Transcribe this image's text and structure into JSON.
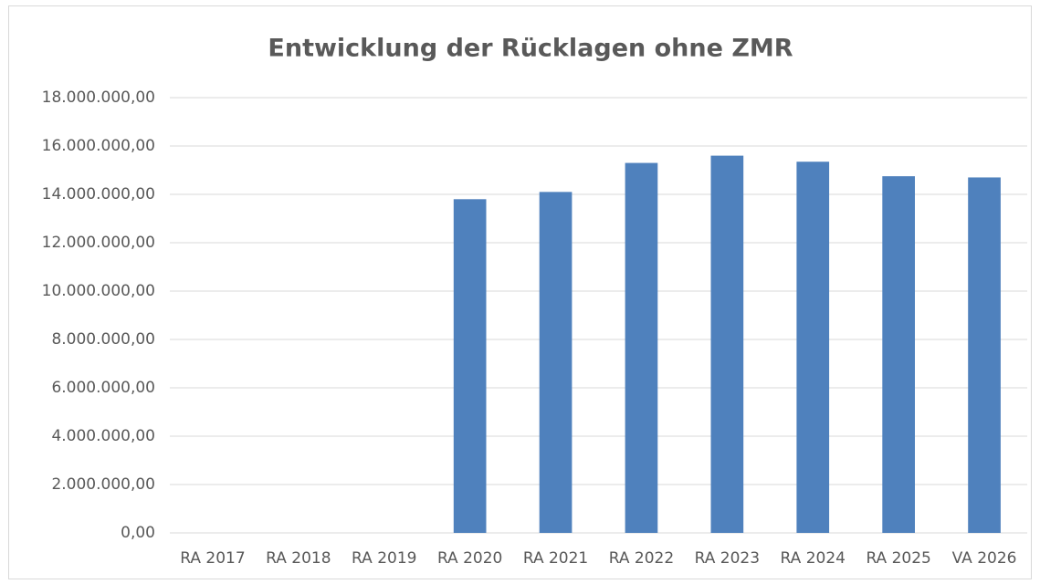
{
  "chart_data": {
    "type": "bar",
    "title": "Entwicklung der Rücklagen ohne ZMR",
    "categories": [
      "RA 2017",
      "RA 2018",
      "RA 2019",
      "RA 2020",
      "RA 2021",
      "RA 2022",
      "RA 2023",
      "RA 2024",
      "RA 2025",
      "VA 2026"
    ],
    "values": [
      0,
      0,
      0,
      13800000,
      14100000,
      15300000,
      15600000,
      15350000,
      14750000,
      14700000
    ],
    "color": "#4f81bd",
    "ylim": [
      0,
      18000000
    ],
    "yticks": [
      {
        "value": 0,
        "label": "0,00"
      },
      {
        "value": 2000000,
        "label": "2.000.000,00"
      },
      {
        "value": 4000000,
        "label": "4.000.000,00"
      },
      {
        "value": 6000000,
        "label": "6.000.000,00"
      },
      {
        "value": 8000000,
        "label": "8.000.000,00"
      },
      {
        "value": 10000000,
        "label": "10.000.000,00"
      },
      {
        "value": 12000000,
        "label": "12.000.000,00"
      },
      {
        "value": 14000000,
        "label": "14.000.000,00"
      },
      {
        "value": 16000000,
        "label": "16.000.000,00"
      },
      {
        "value": 18000000,
        "label": "18.000.000,00"
      }
    ],
    "grid": true
  }
}
